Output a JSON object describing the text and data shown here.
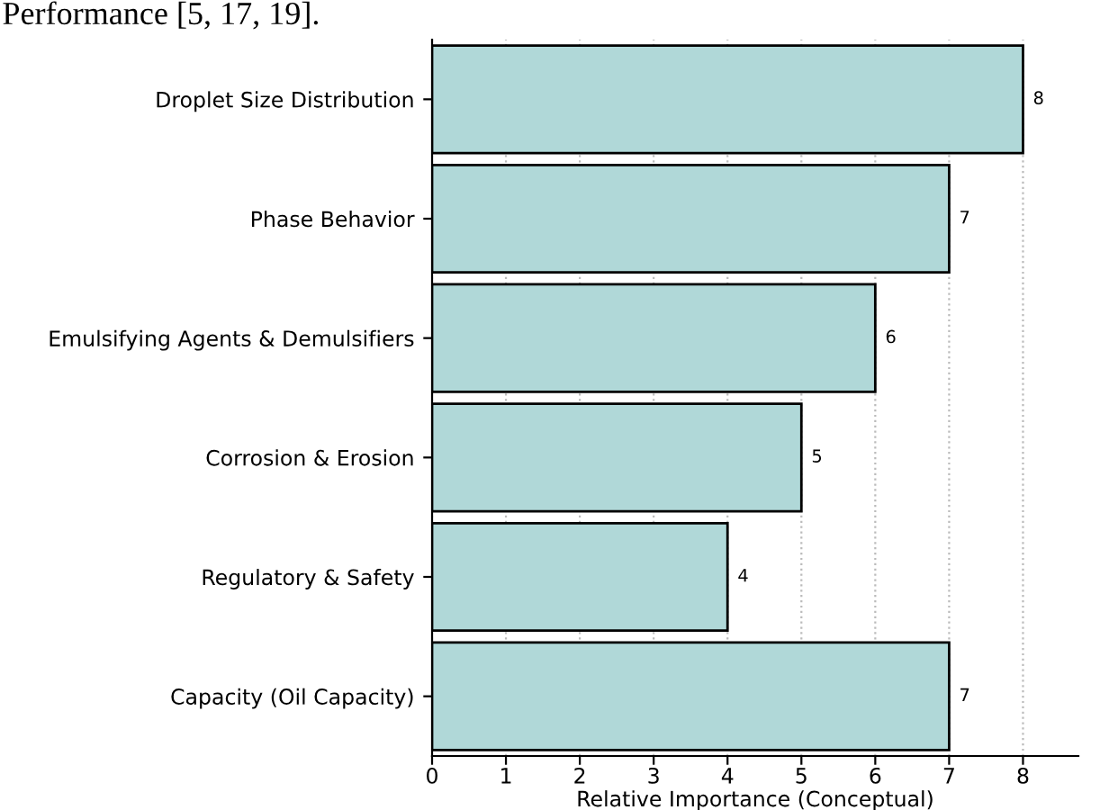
{
  "chart_data": {
    "type": "bar",
    "orientation": "horizontal",
    "categories": [
      "Droplet Size Distribution",
      "Phase Behavior",
      "Emulsifying Agents & Demulsifiers",
      "Corrosion & Erosion",
      "Regulatory & Safety",
      "Capacity (Oil Capacity)"
    ],
    "values": [
      8,
      7,
      6,
      5,
      4,
      7
    ],
    "color": "#b0d8d8",
    "data_labels": true,
    "xlabel": "Relative Importance (Conceptual)",
    "xlim": [
      0,
      8.75
    ],
    "xticks": [
      0,
      1,
      2,
      3,
      4,
      5,
      6,
      7,
      8
    ],
    "grid": "x",
    "annotations": [
      "Performance [5, 17, 19]."
    ]
  }
}
